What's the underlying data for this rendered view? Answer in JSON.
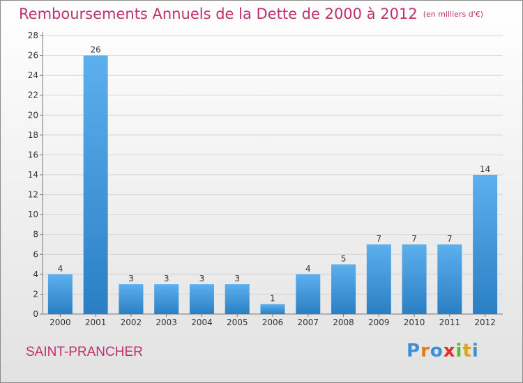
{
  "header": {
    "title": "Remboursements Annuels de la Dette de 2000 à 2012",
    "unit": "(en milliers d'€)"
  },
  "commune": "SAINT-PRANCHER",
  "brand": {
    "name": "Proxiti",
    "letter_colors": [
      "#3b8fd9",
      "#e07a1f",
      "#3b8fd9",
      "#e0302a",
      "#67b32e",
      "#e0a020",
      "#3b8fd9"
    ]
  },
  "colors": {
    "title": "#c0306e",
    "bar_light": "#5db0ee",
    "bar_dark": "#2a7fc4"
  },
  "chart_data": {
    "type": "bar",
    "title": "Remboursements Annuels de la Dette de 2000 à 2012",
    "categories": [
      "2000",
      "2001",
      "2002",
      "2003",
      "2004",
      "2005",
      "2006",
      "2007",
      "2008",
      "2009",
      "2010",
      "2011",
      "2012"
    ],
    "values": [
      4,
      26,
      3,
      3,
      3,
      3,
      1,
      4,
      5,
      7,
      7,
      7,
      14
    ],
    "ylim": [
      0,
      28
    ],
    "yticks": [
      0,
      2,
      4,
      6,
      8,
      10,
      12,
      14,
      16,
      18,
      20,
      22,
      24,
      26,
      28
    ],
    "grid": true
  }
}
